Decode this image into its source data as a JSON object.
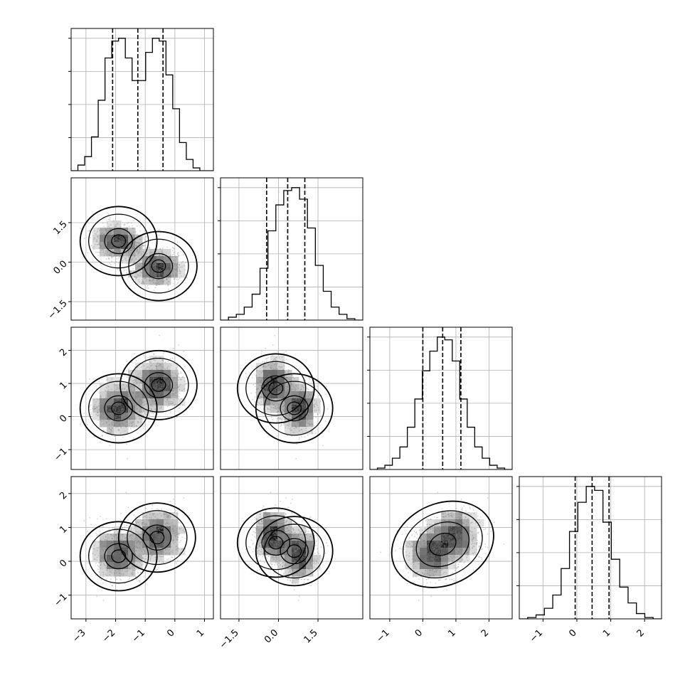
{
  "chart_data": {
    "type": "corner",
    "description": "Corner plot of a 4-parameter posterior: 1D marginal histograms on the diagonal with 16/50/84 percentile dashed lines, 2D density (scatter + shaded histogram + contours) below the diagonal.",
    "grid": true,
    "params": [
      {
        "range": [
          -3.5,
          1.3
        ],
        "ticks": [
          -3,
          -2,
          -1,
          0,
          1
        ],
        "tick_labels": [
          "−3",
          "−2",
          "−1",
          "0",
          "1"
        ],
        "quantiles": [
          -2.1,
          -1.25,
          -0.4
        ]
      },
      {
        "range": [
          -2.2,
          3.2
        ],
        "ticks": [
          -1.5,
          0.0,
          1.5
        ],
        "tick_labels": [
          "−1.5",
          "0.0",
          "1.5"
        ],
        "quantiles": [
          -0.45,
          0.35,
          1.0
        ]
      },
      {
        "range": [
          -1.6,
          2.7
        ],
        "ticks": [
          -1,
          0,
          1,
          2
        ],
        "tick_labels": [
          "−1",
          "0",
          "1",
          "2"
        ],
        "quantiles": [
          0.0,
          0.6,
          1.15
        ]
      },
      {
        "range": [
          -1.7,
          2.5
        ],
        "ticks": [
          -1,
          0,
          1,
          2
        ],
        "tick_labels": [
          "−1",
          "0",
          "1",
          "2"
        ],
        "quantiles": [
          -0.05,
          0.45,
          0.95
        ]
      }
    ],
    "hist_counts": [
      [
        0,
        2,
        5,
        12,
        25,
        40,
        46,
        47,
        40,
        32,
        32,
        42,
        47,
        46,
        34,
        22,
        10,
        4,
        1,
        0,
        0
      ],
      [
        0,
        2,
        4,
        9,
        18,
        36,
        62,
        80,
        90,
        92,
        84,
        64,
        38,
        20,
        9,
        4,
        1,
        0
      ],
      [
        0,
        1,
        3,
        8,
        16,
        30,
        50,
        70,
        84,
        94,
        92,
        77,
        50,
        30,
        16,
        8,
        3,
        1,
        0
      ],
      [
        0,
        1,
        3,
        8,
        18,
        38,
        66,
        88,
        100,
        97,
        73,
        45,
        24,
        12,
        4,
        1,
        0
      ]
    ],
    "modes": [
      {
        "weight": 0.5,
        "mean": [
          -1.9,
          0.8,
          0.25,
          0.2
        ],
        "sd": [
          0.42,
          0.35,
          0.38,
          0.38
        ]
      },
      {
        "weight": 0.5,
        "mean": [
          -0.6,
          -0.2,
          0.95,
          0.75
        ],
        "sd": [
          0.42,
          0.35,
          0.38,
          0.38
        ]
      }
    ],
    "contour_peaks_2d": {
      "p1_vs_p0": [
        [
          -1.9,
          0.8
        ],
        [
          -0.55,
          -0.15
        ]
      ],
      "p2_vs_p0": [
        [
          -1.9,
          0.25
        ],
        [
          -0.55,
          0.95
        ]
      ],
      "p2_vs_p1": [
        [
          -0.1,
          0.85
        ],
        [
          0.6,
          0.25
        ]
      ],
      "p3_vs_p0": [
        [
          -1.9,
          0.15
        ],
        [
          -0.6,
          0.7
        ]
      ],
      "p3_vs_p1": [
        [
          -0.1,
          0.55
        ],
        [
          0.6,
          0.3
        ]
      ],
      "p3_vs_p2": [
        [
          0.6,
          0.5
        ]
      ]
    }
  }
}
